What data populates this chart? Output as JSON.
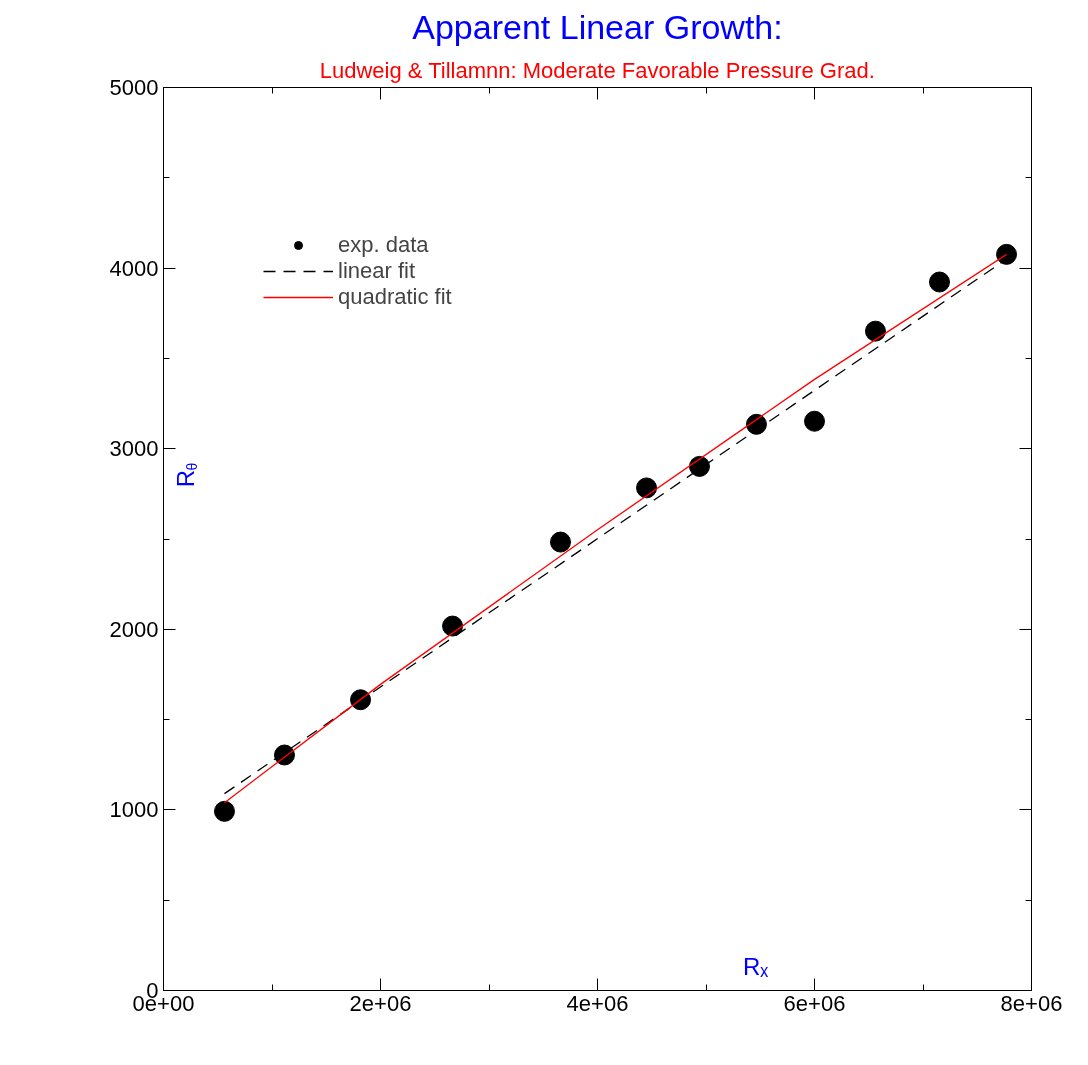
{
  "chart_data": {
    "type": "scatter",
    "title": "Apparent Linear Growth:",
    "subtitle": "Ludweig & Tillamnn: Moderate Favorable Pressure Grad.",
    "xlabel": "Rₓ",
    "ylabel": "R$_{θ}$",
    "xlim": [
      0,
      8000000
    ],
    "ylim": [
      0,
      5000
    ],
    "xticks": [
      {
        "value": 0,
        "label": "0e+00"
      },
      {
        "value": 1000000,
        "label": null
      },
      {
        "value": 2000000,
        "label": "2e+06"
      },
      {
        "value": 3000000,
        "label": null
      },
      {
        "value": 4000000,
        "label": "4e+06"
      },
      {
        "value": 5000000,
        "label": null
      },
      {
        "value": 6000000,
        "label": "6e+06"
      },
      {
        "value": 7000000,
        "label": null
      },
      {
        "value": 8000000,
        "label": "8e+06"
      }
    ],
    "yticks": [
      0,
      {
        "value": 500,
        "label": null
      },
      1000,
      {
        "value": 1500,
        "label": null
      },
      2000,
      {
        "value": 2500,
        "label": null
      },
      3000,
      {
        "value": 3500,
        "label": null
      },
      4000,
      {
        "value": 4500,
        "label": null
      },
      5000
    ],
    "grid": false,
    "legend": "top left",
    "series": [
      {
        "name": "exp. data",
        "marker": "circle",
        "color": "#000000",
        "x": [
          562000,
          1115000,
          1816000,
          2664000,
          3659000,
          4452000,
          4940000,
          5465000,
          6000000,
          6562000,
          7152000,
          7770000
        ],
        "values": [
          992,
          1304,
          1610,
          2018,
          2483,
          2783,
          2902,
          3135,
          3152,
          3651,
          3923,
          4076
        ]
      },
      {
        "name": "linear fit",
        "type": "line",
        "line_style": "dashed",
        "color": "#000000",
        "x": [
          562000,
          7770000
        ],
        "values": [
          1090,
          4050
        ]
      },
      {
        "name": "quadratic fit",
        "type": "line",
        "line_style": "solid",
        "color": "#ff0000",
        "x": [
          562000,
          2000000,
          4000000,
          6000000,
          7770000
        ],
        "values": [
          1040,
          1695,
          2551,
          3384,
          4076
        ]
      }
    ]
  }
}
